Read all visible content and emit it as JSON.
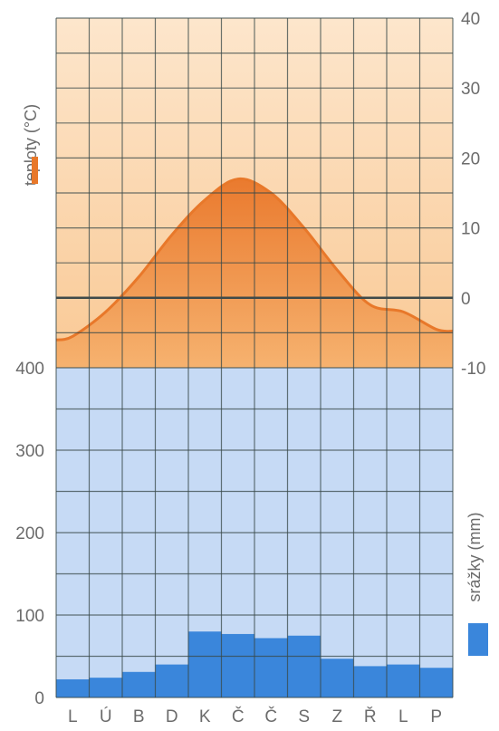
{
  "chart_data": {
    "type": "climate-diagram",
    "categories": [
      "L",
      "Ú",
      "B",
      "D",
      "K",
      "Č",
      "Č",
      "S",
      "Z",
      "Ř",
      "L",
      "P"
    ],
    "temperature": {
      "label": "teploty (°C)",
      "type": "area",
      "unit": "°C",
      "values": [
        -5.5,
        -2.0,
        3.0,
        9.0,
        14.0,
        17.0,
        15.0,
        10.0,
        4.0,
        -1.0,
        -2.0,
        -4.5
      ],
      "ylim": [
        -10,
        40
      ],
      "ticks": [
        "40",
        "30",
        "20",
        "10",
        "0",
        "-10"
      ],
      "color": "#e8782a",
      "background": "#fbdcb6"
    },
    "precipitation": {
      "label": "srážky (mm)",
      "type": "bar",
      "unit": "mm",
      "values": [
        22,
        24,
        31,
        40,
        80,
        77,
        72,
        75,
        47,
        38,
        40,
        36
      ],
      "ylim": [
        0,
        400
      ],
      "ticks": [
        "400",
        "300",
        "200",
        "100",
        "0"
      ],
      "color": "#3a86db",
      "background": "#c6daf5"
    },
    "grid": true
  }
}
